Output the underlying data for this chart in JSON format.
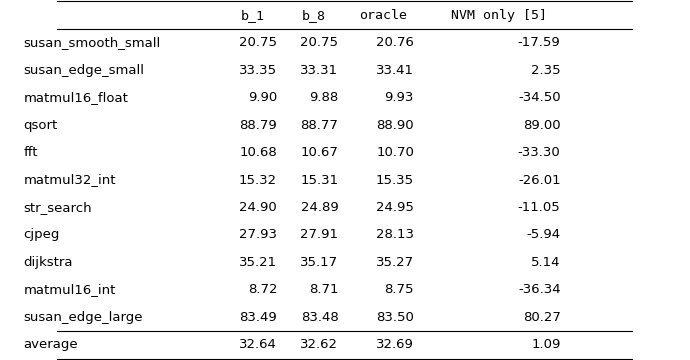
{
  "columns": [
    "b_1",
    "b_8",
    "oracle",
    "NVM only [5]"
  ],
  "rows": [
    [
      "susan_smooth_small",
      "20.75",
      "20.75",
      "20.76",
      "-17.59"
    ],
    [
      "susan_edge_small",
      "33.35",
      "33.31",
      "33.41",
      "2.35"
    ],
    [
      "matmul16_float",
      "9.90",
      "9.88",
      "9.93",
      "-34.50"
    ],
    [
      "qsort",
      "88.79",
      "88.77",
      "88.90",
      "89.00"
    ],
    [
      "fft",
      "10.68",
      "10.67",
      "10.70",
      "-33.30"
    ],
    [
      "matmul32_int",
      "15.32",
      "15.31",
      "15.35",
      "-26.01"
    ],
    [
      "str_search",
      "24.90",
      "24.89",
      "24.95",
      "-11.05"
    ],
    [
      "cjpeg",
      "27.93",
      "27.91",
      "28.13",
      "-5.94"
    ],
    [
      "dijkstra",
      "35.21",
      "35.17",
      "35.27",
      "5.14"
    ],
    [
      "matmul16_int",
      "8.72",
      "8.71",
      "8.75",
      "-36.34"
    ],
    [
      "susan_edge_large",
      "83.49",
      "83.48",
      "83.50",
      "80.27"
    ]
  ],
  "average_row": [
    "average",
    "32.64",
    "32.62",
    "32.69",
    "1.09"
  ],
  "col_alignments": [
    "left",
    "right",
    "right",
    "right",
    "right"
  ],
  "header_color": "#ffffff",
  "bg_color": "#ffffff",
  "text_color": "#000000",
  "line_color": "#000000",
  "font_size": 9.5
}
